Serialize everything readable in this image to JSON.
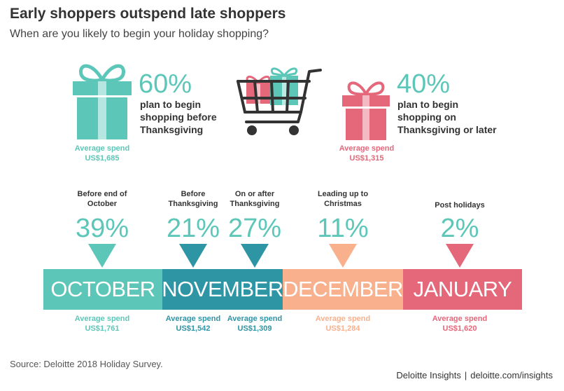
{
  "header": {
    "title": "Early shoppers outspend late shoppers",
    "subtitle": "When are you likely to begin your holiday shopping?"
  },
  "colors": {
    "teal": "#5CC7B8",
    "dark_teal": "#2E95A5",
    "peach": "#F8B08D",
    "pink": "#E5677A",
    "dark_text": "#333333"
  },
  "icons": [
    "gift-box-icon",
    "shopping-cart-icon"
  ],
  "summary": {
    "early": {
      "pct": "60%",
      "desc_lines": [
        "plan to begin",
        "shopping before",
        "Thanksgiving"
      ],
      "avg_label": "Average spend",
      "avg_value": "US$1,685"
    },
    "late": {
      "pct": "40%",
      "desc_lines": [
        "plan to begin",
        "shopping on",
        "Thanksgiving or later"
      ],
      "avg_label": "Average spend",
      "avg_value": "US$1,315"
    }
  },
  "chart_data": {
    "type": "bar",
    "categories": [
      "Before end of October",
      "Before Thanksgiving",
      "On or after Thanksgiving",
      "Leading up to Christmas",
      "Post holidays"
    ],
    "values": [
      39,
      21,
      27,
      11,
      2
    ],
    "unit": "%",
    "value_labels": [
      "39%",
      "21%",
      "27%",
      "11%",
      "2%"
    ],
    "label_lines": [
      [
        "Before end of",
        "October"
      ],
      [
        "Before",
        "Thanksgiving"
      ],
      [
        "On or after",
        "Thanksgiving"
      ],
      [
        "Leading up to",
        "Christmas"
      ],
      [
        "Post holidays"
      ]
    ],
    "average_spend_label": "Average spend",
    "average_spend": [
      "US$1,761",
      "US$1,542",
      "US$1,309",
      "US$1,284",
      "US$1,620"
    ],
    "months": [
      "OCTOBER",
      "NOVEMBER",
      "DECEMBER",
      "JANUARY"
    ],
    "summary_split": {
      "before_thanksgiving": 60,
      "thanksgiving_or_later": 40
    }
  },
  "footer": {
    "source": "Source: Deloitte 2018 Holiday Survey.",
    "brand": "Deloitte Insights",
    "separator": "|",
    "url": "deloitte.com/insights"
  }
}
